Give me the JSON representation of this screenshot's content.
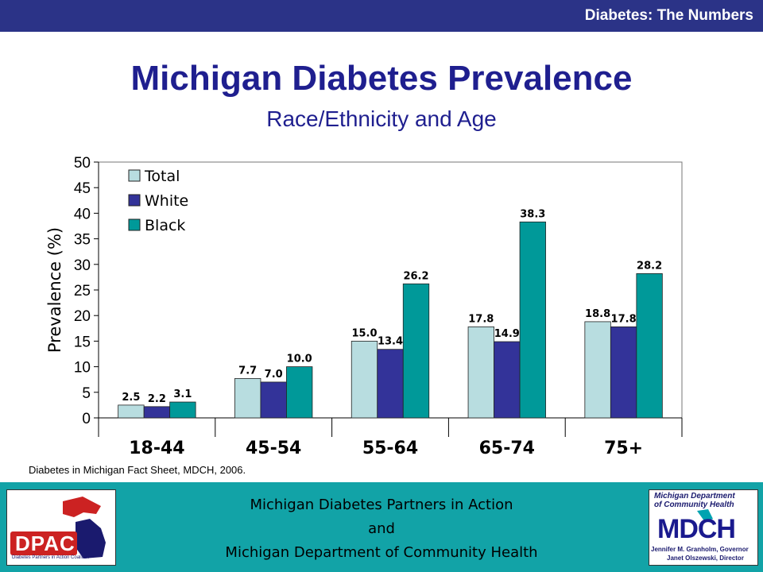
{
  "header": {
    "label": "Diabetes: The Numbers"
  },
  "title": "Michigan Diabetes Prevalence",
  "subtitle": "Race/Ethnicity and Age",
  "chart_data": {
    "type": "bar",
    "categories": [
      "18-44",
      "45-54",
      "55-64",
      "65-74",
      "75+"
    ],
    "series": [
      {
        "name": "Total",
        "color": "#b8dde0",
        "values": [
          2.5,
          7.7,
          15.0,
          17.8,
          18.8
        ]
      },
      {
        "name": "White",
        "color": "#333399",
        "values": [
          2.2,
          7.0,
          13.4,
          14.9,
          17.8
        ]
      },
      {
        "name": "Black",
        "color": "#009999",
        "values": [
          3.1,
          10.0,
          26.2,
          38.3,
          28.2
        ]
      }
    ],
    "ylabel": "Prevalence (%)",
    "xlabel": "",
    "ylim": [
      0,
      50
    ],
    "yticks": [
      0,
      5,
      10,
      15,
      20,
      25,
      30,
      35,
      40,
      45,
      50
    ],
    "legend_position": "top-left",
    "grid": false
  },
  "source": "Diabetes in Michigan Fact Sheet, MDCH, 2006.",
  "footer": {
    "line1": "Michigan Diabetes Partners in Action",
    "line2": "and",
    "line3": "Michigan Department of Community Health"
  },
  "logos": {
    "left": {
      "text": "DPAC",
      "tagline": "Diabetes Partners in Action Coalition"
    },
    "right": {
      "org1": "Michigan Department",
      "org2": "of Community Health",
      "text": "MDCH",
      "person1": "Jennifer M. Granholm, Governor",
      "person2": "Janet Olszewski, Director"
    }
  }
}
